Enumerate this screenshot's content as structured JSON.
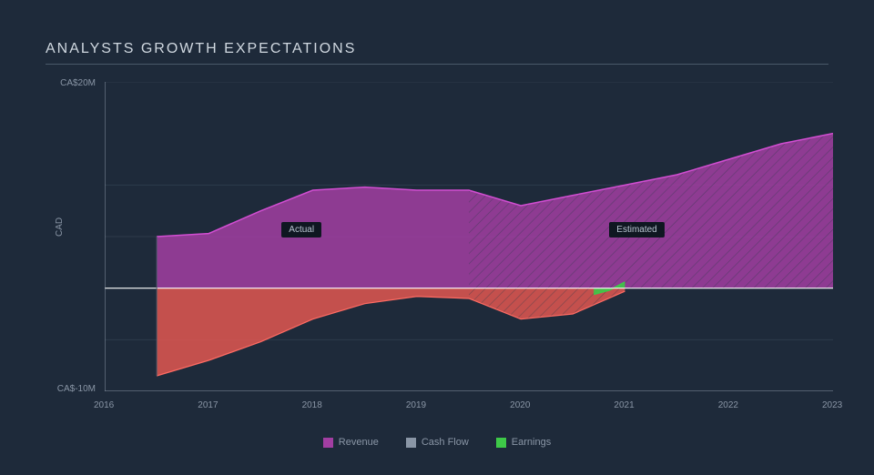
{
  "title": "ANALYSTS GROWTH EXPECTATIONS",
  "chart": {
    "type": "area",
    "background": "#1e2a3a",
    "grid_color": "#2d3a4a",
    "axis_color": "#8a96a6",
    "zero_line_color": "#ffffff",
    "x": {
      "min": 2016,
      "max": 2023,
      "ticks": [
        2016,
        2017,
        2018,
        2019,
        2020,
        2021,
        2022,
        2023
      ]
    },
    "y": {
      "name": "CAD",
      "top_label": "CA$20M",
      "bottom_label": "CA$-10M",
      "min": -10,
      "max": 20,
      "zero": 0,
      "gridlines": [
        -10,
        -5,
        0,
        5,
        10,
        20
      ]
    },
    "split_year": 2019.5,
    "regions": {
      "actual": "Actual",
      "estimated": "Estimated"
    },
    "series": {
      "revenue": {
        "label": "Revenue",
        "color": "#a23ea2",
        "fill_opacity": 0.85,
        "points": [
          [
            2016.5,
            5.0
          ],
          [
            2017,
            5.3
          ],
          [
            2017.5,
            7.5
          ],
          [
            2018,
            9.5
          ],
          [
            2018.5,
            9.8
          ],
          [
            2019,
            9.5
          ],
          [
            2019.5,
            9.5
          ],
          [
            2020,
            8.0
          ],
          [
            2020.5,
            9.0
          ],
          [
            2021,
            10.0
          ],
          [
            2021.5,
            11.0
          ],
          [
            2022,
            12.5
          ],
          [
            2022.5,
            14.0
          ],
          [
            2023,
            15.0
          ]
        ]
      },
      "cashflow": {
        "label": "Cash Flow",
        "color": "#ee5a52",
        "fill_opacity": 0.8,
        "points": [
          [
            2016.5,
            -8.5
          ],
          [
            2017,
            -7.0
          ],
          [
            2017.5,
            -5.2
          ],
          [
            2018,
            -3.0
          ],
          [
            2018.5,
            -1.5
          ],
          [
            2019,
            -0.8
          ],
          [
            2019.5,
            -1.0
          ],
          [
            2020,
            -3.0
          ],
          [
            2020.5,
            -2.5
          ],
          [
            2021,
            -0.3
          ]
        ]
      },
      "earnings": {
        "label": "Earnings",
        "color": "#3ec948",
        "fill_opacity": 0.9,
        "points": [
          [
            2020.7,
            -0.6
          ],
          [
            2020.85,
            -0.2
          ],
          [
            2021,
            0.6
          ]
        ]
      }
    },
    "legend": [
      {
        "key": "revenue",
        "label": "Revenue",
        "color": "#a23ea2"
      },
      {
        "key": "cashflow",
        "label": "Cash Flow",
        "color": "#8a96a6"
      },
      {
        "key": "earnings",
        "label": "Earnings",
        "color": "#3ec948"
      }
    ],
    "hatch_stroke": "#2d3a4a"
  }
}
